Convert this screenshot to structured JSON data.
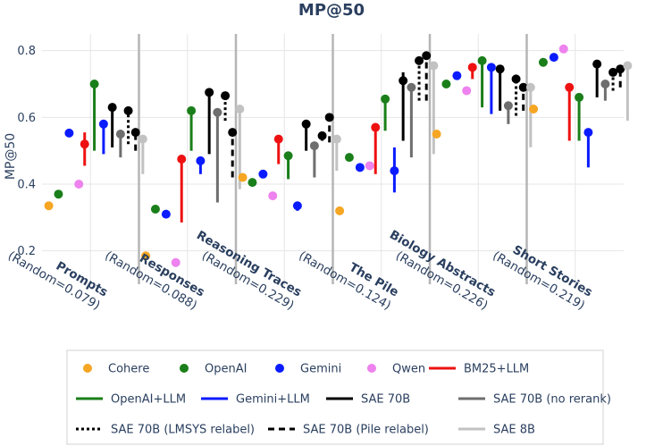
{
  "chart_data": {
    "type": "scatter",
    "title": "MP@50",
    "ylabel": "MP@50",
    "ylim": [
      0.1,
      0.85
    ],
    "yticks": [
      0.2,
      0.4,
      0.6,
      0.8
    ],
    "grid": true,
    "categories": [
      {
        "name": "Prompts",
        "sub": "(Random=0.079)"
      },
      {
        "name": "Responses",
        "sub": "(Random=0.088)"
      },
      {
        "name": "Reasoning Traces",
        "sub": "(Random=0.229)"
      },
      {
        "name": "The Pile",
        "sub": "(Random=0.124)"
      },
      {
        "name": "Biology Abstracts",
        "sub": "(Random=0.226)"
      },
      {
        "name": "Short Stories",
        "sub": "(Random=0.219)"
      }
    ],
    "point_series": [
      {
        "name": "Cohere",
        "color": "#f5a623",
        "values": [
          0.335,
          0.185,
          0.42,
          0.32,
          0.55,
          0.625
        ]
      },
      {
        "name": "OpenAI",
        "color": "#1a7f1a",
        "values": [
          0.37,
          0.325,
          0.405,
          0.48,
          0.7,
          0.765
        ]
      },
      {
        "name": "Gemini",
        "color": "#0a1bff",
        "values": [
          0.553,
          0.31,
          0.43,
          0.45,
          0.725,
          0.78
        ]
      },
      {
        "name": "Qwen",
        "color": "#ee82ee",
        "values": [
          0.4,
          0.165,
          0.365,
          0.455,
          0.68,
          0.805
        ]
      }
    ],
    "range_series": [
      {
        "name": "BM25+LLM",
        "color": "#ee1111",
        "dash": "solid",
        "values": [
          [
            0.455,
            0.555,
            0.52
          ],
          [
            0.285,
            0.475,
            0.475
          ],
          [
            0.46,
            0.535,
            0.535
          ],
          [
            0.43,
            0.57,
            0.57
          ],
          [
            0.715,
            0.755,
            0.75
          ],
          [
            0.53,
            0.69,
            0.69
          ]
        ]
      },
      {
        "name": "OpenAI+LLM",
        "color": "#1a7f1a",
        "dash": "solid",
        "values": [
          [
            0.5,
            0.7,
            0.7
          ],
          [
            0.5,
            0.62,
            0.62
          ],
          [
            0.415,
            0.485,
            0.485
          ],
          [
            0.56,
            0.655,
            0.655
          ],
          [
            0.63,
            0.77,
            0.77
          ],
          [
            0.53,
            0.66,
            0.66
          ]
        ]
      },
      {
        "name": "Gemini+LLM",
        "color": "#0a1bff",
        "dash": "solid",
        "values": [
          [
            0.49,
            0.58,
            0.58
          ],
          [
            0.43,
            0.47,
            0.47
          ],
          [
            0.32,
            0.34,
            0.335
          ],
          [
            0.375,
            0.51,
            0.44
          ],
          [
            0.61,
            0.75,
            0.75
          ],
          [
            0.45,
            0.555,
            0.555
          ]
        ]
      },
      {
        "name": "SAE 70B",
        "color": "#000000",
        "dash": "solid",
        "values": [
          [
            0.51,
            0.63,
            0.63
          ],
          [
            0.49,
            0.675,
            0.675
          ],
          [
            0.5,
            0.58,
            0.58
          ],
          [
            0.53,
            0.735,
            0.71
          ],
          [
            0.62,
            0.745,
            0.745
          ],
          [
            0.66,
            0.76,
            0.76
          ]
        ]
      },
      {
        "name": "SAE 70B (no rerank)",
        "color": "#6e6e6e",
        "dash": "solid",
        "values": [
          [
            0.48,
            0.55,
            0.55
          ],
          [
            0.345,
            0.615,
            0.615
          ],
          [
            0.42,
            0.515,
            0.515
          ],
          [
            0.48,
            0.69,
            0.69
          ],
          [
            0.58,
            0.64,
            0.635
          ],
          [
            0.65,
            0.7,
            0.7
          ]
        ]
      },
      {
        "name": "SAE 70B (LMSYS relabel)",
        "color": "#000000",
        "dash": "dot",
        "values": [
          [
            0.52,
            0.62,
            0.62
          ],
          [
            0.59,
            0.665,
            0.665
          ],
          [
            0.53,
            0.55,
            0.545
          ],
          [
            0.65,
            0.77,
            0.77
          ],
          [
            0.605,
            0.715,
            0.715
          ],
          [
            0.68,
            0.735,
            0.735
          ]
        ]
      },
      {
        "name": "SAE 70B (Pile relabel)",
        "color": "#000000",
        "dash": "dash",
        "values": [
          [
            0.5,
            0.555,
            0.555
          ],
          [
            0.42,
            0.555,
            0.555
          ],
          [
            0.525,
            0.6,
            0.6
          ],
          [
            0.65,
            0.785,
            0.785
          ],
          [
            0.62,
            0.69,
            0.69
          ],
          [
            0.69,
            0.745,
            0.745
          ]
        ]
      },
      {
        "name": "SAE 8B",
        "color": "#c2c2c2",
        "dash": "solid",
        "values": [
          [
            0.43,
            0.535,
            0.535
          ],
          [
            0.385,
            0.625,
            0.625
          ],
          [
            0.44,
            0.535,
            0.535
          ],
          [
            0.49,
            0.755,
            0.755
          ],
          [
            0.51,
            0.69,
            0.69
          ],
          [
            0.59,
            0.755,
            0.755
          ]
        ]
      }
    ],
    "legend": {
      "placement": "bottom",
      "rows": [
        [
          "Cohere",
          "OpenAI",
          "Gemini",
          "Qwen",
          "BM25+LLM"
        ],
        [
          "OpenAI+LLM",
          "Gemini+LLM",
          "SAE 70B",
          "SAE 70B (no rerank)"
        ],
        [
          "SAE 70B (LMSYS relabel)",
          "SAE 70B (Pile relabel)",
          "SAE 8B"
        ]
      ]
    }
  }
}
